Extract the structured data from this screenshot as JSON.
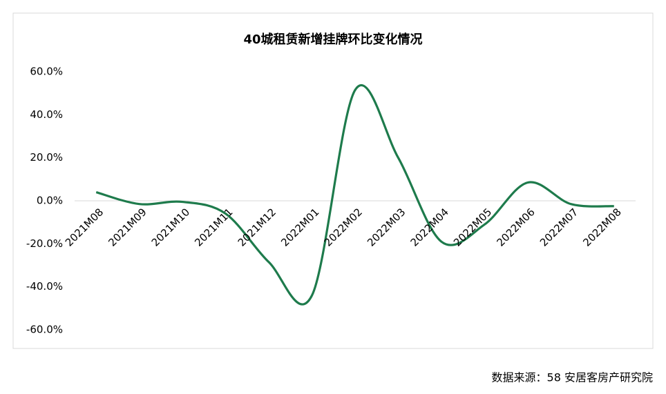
{
  "chart_data": {
    "type": "line",
    "title": "40城租赁新增挂牌环比变化情况",
    "categories": [
      "2021M08",
      "2021M09",
      "2021M10",
      "2021M11",
      "2021M12",
      "2022M01",
      "2022M02",
      "2022M03",
      "2022M04",
      "2022M05",
      "2022M06",
      "2022M07",
      "2022M08"
    ],
    "values": [
      4.0,
      -1.5,
      -0.5,
      -6.0,
      -28.5,
      -44.0,
      51.5,
      20.0,
      -19.0,
      -11.0,
      8.5,
      -1.5,
      -2.5
    ],
    "color": "#1e7b4c",
    "smooth": true,
    "ylim": [
      -60,
      60
    ],
    "yticks": [
      {
        "value": -60,
        "label": "-60.0%"
      },
      {
        "value": -40,
        "label": "-40.0%"
      },
      {
        "value": -20,
        "label": "-20.0%"
      },
      {
        "value": 0,
        "label": "0.0%"
      },
      {
        "value": 20,
        "label": "20.0%"
      },
      {
        "value": 40,
        "label": "40.0%"
      },
      {
        "value": 60,
        "label": "60.0%"
      }
    ],
    "source": "数据来源：58 安居客房产研究院"
  }
}
